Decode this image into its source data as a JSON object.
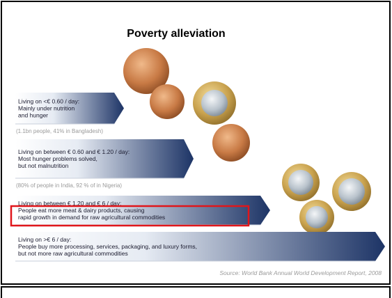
{
  "title": "Poverty alleviation",
  "items": [
    {
      "lines": [
        "Living on <€ 0.60 / day:",
        "Mainly under nutrition",
        "and hunger"
      ],
      "note": "(1.1bn people, 41% in Bangladesh)"
    },
    {
      "lines": [
        "Living on between € 0.60 and € 1.20 / day:",
        "Most hunger problems solved,",
        "but not malnutrition"
      ],
      "note": "(80% of people in India, 92 % of in Nigeria)"
    },
    {
      "lines": [
        "Living on between € 1.20 and € 6 / day:",
        "People eat more meat & dairy products, causing",
        "rapid growth in demand for raw agricultural commodities"
      ]
    },
    {
      "lines": [
        "Living on >€ 6 / day:",
        "People buy more processing, services, packaging, and luxury forms,",
        "but not more raw agricultural commodities"
      ]
    }
  ],
  "source": "Source: World Bank Annual World Development Report, 2008"
}
